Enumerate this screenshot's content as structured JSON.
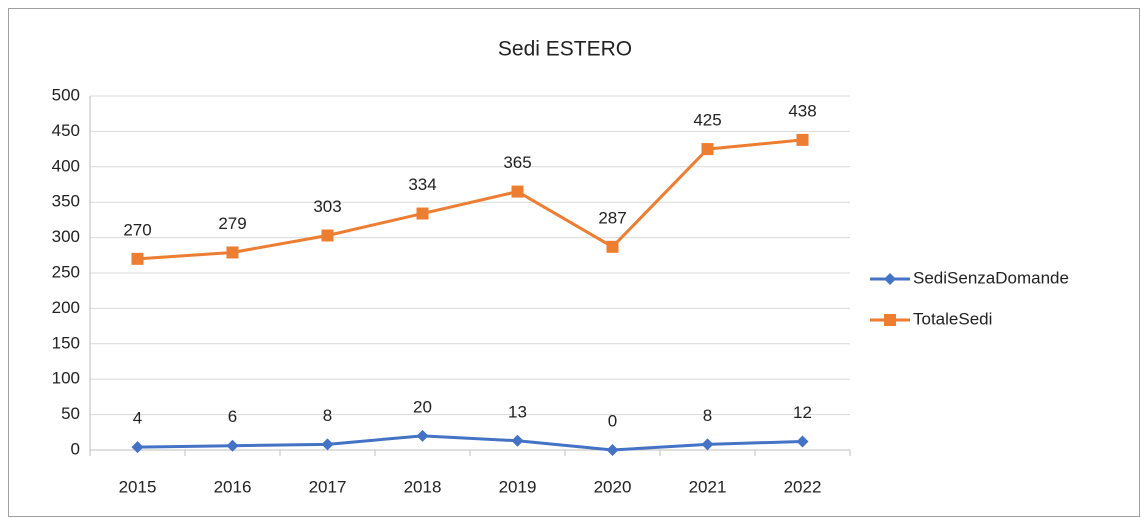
{
  "chart_data": {
    "type": "line",
    "title": "Sedi ESTERO",
    "categories": [
      "2015",
      "2016",
      "2017",
      "2018",
      "2019",
      "2020",
      "2021",
      "2022"
    ],
    "series": [
      {
        "name": "SediSenzaDomande",
        "color": "#4472c4",
        "marker": "diamond",
        "values": [
          4,
          6,
          8,
          20,
          13,
          0,
          8,
          12
        ]
      },
      {
        "name": "TotaleSedi",
        "color": "#ed7d31",
        "marker": "square",
        "values": [
          270,
          279,
          303,
          334,
          365,
          287,
          425,
          438
        ]
      }
    ],
    "ylim": [
      0,
      500
    ],
    "yticks": [
      0,
      50,
      100,
      150,
      200,
      250,
      300,
      350,
      400,
      450,
      500
    ],
    "grid": true,
    "legend": "right"
  }
}
